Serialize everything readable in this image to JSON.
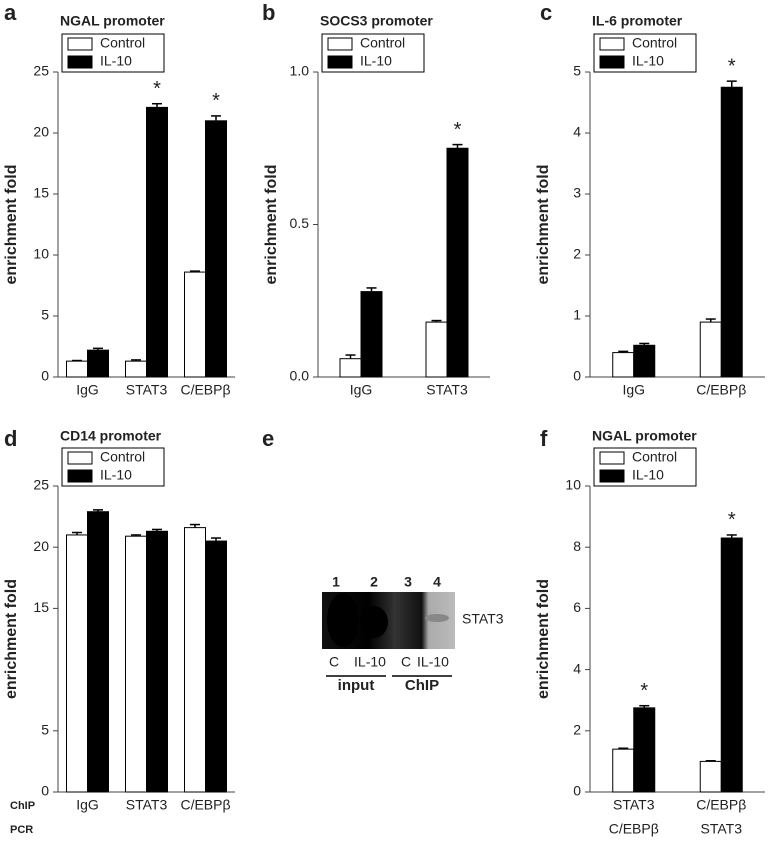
{
  "chart_data": [
    {
      "type": "bar",
      "label": "a",
      "title": "NGAL promoter",
      "y_label": "enrichment fold",
      "categories": [
        "IgG",
        "STAT3",
        "C/EBPβ"
      ],
      "series": [
        {
          "name": "Control",
          "color": "#ffffff",
          "values": [
            1.3,
            1.3,
            8.6
          ],
          "errors": [
            0.05,
            0.1,
            0.08
          ],
          "significance": [
            null,
            null,
            null
          ]
        },
        {
          "name": "IL-10",
          "color": "#000000",
          "values": [
            2.2,
            22.1,
            21.0
          ],
          "errors": [
            0.15,
            0.3,
            0.4
          ],
          "significance": [
            null,
            "*",
            "*"
          ]
        }
      ],
      "ylim": [
        0,
        25
      ],
      "yticks": [
        0,
        5,
        10,
        15,
        20,
        25
      ]
    },
    {
      "type": "bar",
      "label": "b",
      "title": "SOCS3 promoter",
      "y_label": "enrichment fold",
      "categories": [
        "IgG",
        "STAT3"
      ],
      "series": [
        {
          "name": "Control",
          "color": "#ffffff",
          "values": [
            0.06,
            0.18
          ],
          "errors": [
            0.012,
            0.005
          ],
          "significance": [
            null,
            null
          ]
        },
        {
          "name": "IL-10",
          "color": "#000000",
          "values": [
            0.28,
            0.75
          ],
          "errors": [
            0.012,
            0.012
          ],
          "significance": [
            null,
            "*"
          ]
        }
      ],
      "ylim": [
        0,
        1.0
      ],
      "yticks": [
        {
          "value": 0,
          "label": "0.0"
        },
        0.5,
        {
          "value": 1,
          "label": "1.0"
        }
      ]
    },
    {
      "type": "bar",
      "label": "c",
      "title": "IL-6 promoter",
      "y_label": "enrichment fold",
      "categories": [
        "IgG",
        "C/EBPβ"
      ],
      "series": [
        {
          "name": "Control",
          "color": "#ffffff",
          "values": [
            0.4,
            0.9
          ],
          "errors": [
            0.02,
            0.05
          ],
          "significance": [
            null,
            null
          ]
        },
        {
          "name": "IL-10",
          "color": "#000000",
          "values": [
            0.52,
            4.75
          ],
          "errors": [
            0.03,
            0.1
          ],
          "significance": [
            null,
            "*"
          ]
        }
      ],
      "ylim": [
        0,
        5
      ],
      "yticks": [
        0,
        1,
        2,
        3,
        4,
        5
      ]
    },
    {
      "type": "bar",
      "label": "d",
      "title": "CD14 promoter",
      "y_label": "enrichment fold",
      "categories": [
        "IgG",
        "STAT3",
        "C/EBPβ"
      ],
      "series": [
        {
          "name": "Control",
          "color": "#ffffff",
          "values": [
            21.0,
            20.9,
            21.6
          ],
          "errors": [
            0.2,
            0.1,
            0.25
          ],
          "significance": [
            null,
            null,
            null
          ]
        },
        {
          "name": "IL-10",
          "color": "#000000",
          "values": [
            22.9,
            21.3,
            20.5
          ],
          "errors": [
            0.15,
            0.15,
            0.25
          ],
          "significance": [
            null,
            null,
            null
          ]
        }
      ],
      "ylim": [
        0,
        25
      ],
      "yticks": [
        0,
        5,
        15,
        20,
        25
      ]
    },
    {
      "type": "blot",
      "label": "e",
      "lanes": [
        "1",
        "2",
        "3",
        "4"
      ],
      "band": "STAT3",
      "conditions": [
        "C",
        "IL-10",
        "C",
        "IL-10"
      ],
      "groups": [
        "input",
        "ChIP"
      ]
    },
    {
      "type": "bar",
      "label": "f",
      "title": "NGAL promoter",
      "y_label": "enrichment fold",
      "categories": [
        "STAT3",
        "C/EBPβ"
      ],
      "categories2": [
        "C/EBPβ",
        "STAT3"
      ],
      "category_rows": [
        "ChIP",
        "PCR"
      ],
      "series": [
        {
          "name": "Control",
          "color": "#ffffff",
          "values": [
            1.4,
            1.0
          ],
          "errors": [
            0.03,
            0.02
          ],
          "significance": [
            null,
            null
          ]
        },
        {
          "name": "IL-10",
          "color": "#000000",
          "values": [
            2.75,
            8.3
          ],
          "errors": [
            0.07,
            0.1
          ],
          "significance": [
            "*",
            "*"
          ]
        }
      ],
      "ylim": [
        0,
        10
      ],
      "yticks": [
        0,
        2,
        4,
        6,
        8,
        10
      ]
    }
  ]
}
